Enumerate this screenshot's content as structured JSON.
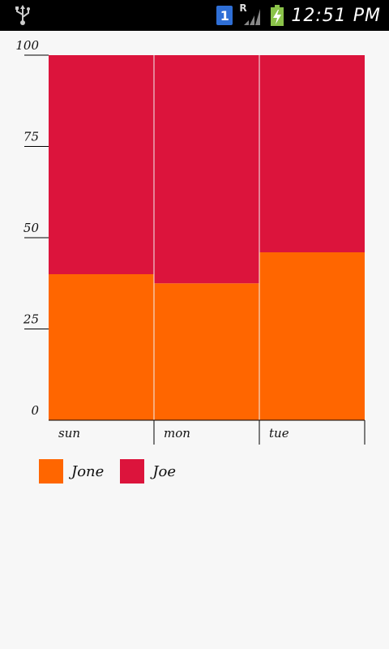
{
  "statusbar": {
    "time": "12:51 PM",
    "sim_number": "1",
    "roaming": "R",
    "usb_icon": "usb-icon",
    "signal_icon": "signal-icon",
    "battery_icon": "battery-charging-icon"
  },
  "chart_data": {
    "type": "bar",
    "stacked": true,
    "categories": [
      "sun",
      "mon",
      "tue"
    ],
    "series": [
      {
        "name": "Jone",
        "color": "#ff6600",
        "values": [
          40,
          37.5,
          46
        ]
      },
      {
        "name": "Joe",
        "color": "#dc143c",
        "values": [
          60,
          62.5,
          54
        ]
      }
    ],
    "ylim": [
      0,
      100
    ],
    "yticks": [
      "0",
      "25",
      "50",
      "75",
      "100"
    ],
    "title": "",
    "xlabel": "",
    "ylabel": "",
    "legend_position": "bottom-left",
    "grid": false
  }
}
